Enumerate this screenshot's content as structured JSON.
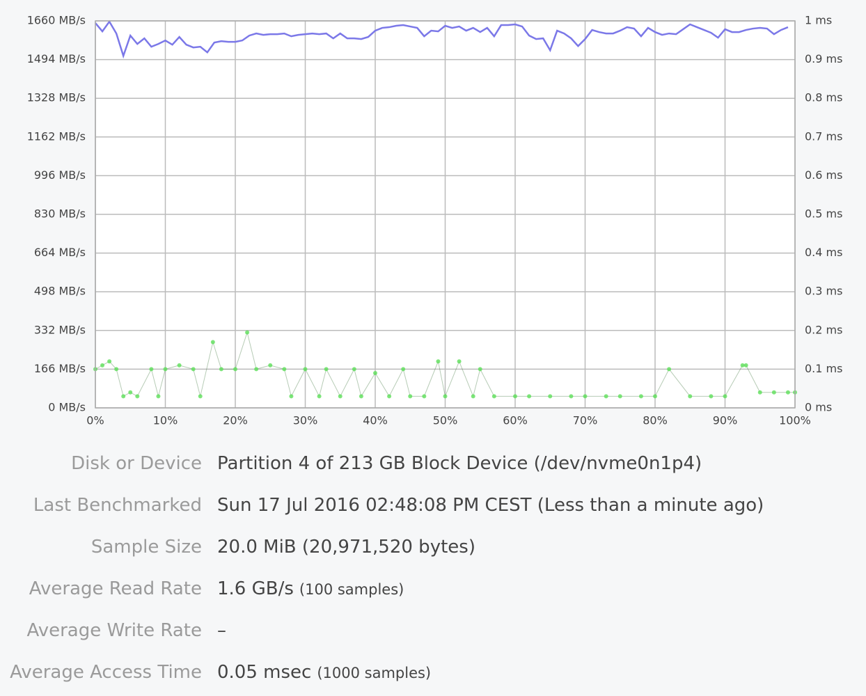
{
  "chart_data": {
    "type": "line",
    "xlim": [
      0,
      100
    ],
    "xticks": [
      {
        "value": 0,
        "label": "0%"
      },
      {
        "value": 10,
        "label": "10%"
      },
      {
        "value": 20,
        "label": "20%"
      },
      {
        "value": 30,
        "label": "30%"
      },
      {
        "value": 40,
        "label": "40%"
      },
      {
        "value": 50,
        "label": "50%"
      },
      {
        "value": 60,
        "label": "60%"
      },
      {
        "value": 70,
        "label": "70%"
      },
      {
        "value": 80,
        "label": "80%"
      },
      {
        "value": 90,
        "label": "90%"
      },
      {
        "value": 100,
        "label": "100%"
      }
    ],
    "ylim": [
      0,
      1660
    ],
    "yticks": [
      {
        "value": 0,
        "label": "0 MB/s"
      },
      {
        "value": 166,
        "label": "166 MB/s"
      },
      {
        "value": 332,
        "label": "332 MB/s"
      },
      {
        "value": 498,
        "label": "498 MB/s"
      },
      {
        "value": 664,
        "label": "664 MB/s"
      },
      {
        "value": 830,
        "label": "830 MB/s"
      },
      {
        "value": 996,
        "label": "996 MB/s"
      },
      {
        "value": 1162,
        "label": "1162 MB/s"
      },
      {
        "value": 1328,
        "label": "1328 MB/s"
      },
      {
        "value": 1494,
        "label": "1494 MB/s"
      },
      {
        "value": 1660,
        "label": "1660 MB/s"
      }
    ],
    "y2lim": [
      0,
      1
    ],
    "y2ticks": [
      {
        "value": 0,
        "label": "0 ms"
      },
      {
        "value": 0.1,
        "label": "0.1 ms"
      },
      {
        "value": 0.2,
        "label": "0.2 ms"
      },
      {
        "value": 0.3,
        "label": "0.3 ms"
      },
      {
        "value": 0.4,
        "label": "0.4 ms"
      },
      {
        "value": 0.5,
        "label": "0.5 ms"
      },
      {
        "value": 0.6,
        "label": "0.6 ms"
      },
      {
        "value": 0.7,
        "label": "0.7 ms"
      },
      {
        "value": 0.8,
        "label": "0.8 ms"
      },
      {
        "value": 0.9,
        "label": "0.9 ms"
      },
      {
        "value": 1,
        "label": "1 ms"
      }
    ],
    "grid": true,
    "series": [
      {
        "type": "line",
        "color": "#7b78e8",
        "x": [
          0,
          1,
          2,
          3,
          4,
          5,
          6,
          7,
          8,
          9,
          10,
          11,
          12,
          13,
          14,
          15,
          16,
          17,
          18,
          19,
          20,
          21,
          22,
          23,
          24,
          25,
          26,
          27,
          28,
          29,
          30,
          31,
          32,
          33,
          34,
          35,
          36,
          37,
          38,
          39,
          40,
          41,
          42,
          43,
          44,
          45,
          46,
          47,
          48,
          49,
          50,
          51,
          52,
          53,
          54,
          55,
          56,
          57,
          58,
          59,
          60,
          61,
          62,
          63,
          64,
          65,
          66,
          67,
          68,
          69,
          70,
          71,
          72,
          73,
          74,
          75,
          76,
          77,
          78,
          79,
          80,
          81,
          82,
          83,
          84,
          85,
          86,
          87,
          88,
          89,
          90,
          91,
          92,
          93,
          94,
          95,
          96,
          97,
          98,
          99
        ],
        "values": [
          1651,
          1615,
          1657,
          1606,
          1510,
          1597,
          1561,
          1585,
          1549,
          1561,
          1576,
          1558,
          1591,
          1558,
          1546,
          1549,
          1525,
          1567,
          1573,
          1570,
          1570,
          1576,
          1597,
          1606,
          1600,
          1603,
          1603,
          1606,
          1594,
          1600,
          1603,
          1606,
          1603,
          1606,
          1585,
          1606,
          1585,
          1585,
          1582,
          1591,
          1618,
          1630,
          1633,
          1639,
          1642,
          1636,
          1630,
          1594,
          1618,
          1615,
          1639,
          1630,
          1636,
          1618,
          1630,
          1612,
          1630,
          1594,
          1642,
          1642,
          1645,
          1636,
          1597,
          1582,
          1585,
          1534,
          1618,
          1606,
          1585,
          1552,
          1582,
          1621,
          1612,
          1606,
          1606,
          1618,
          1633,
          1627,
          1594,
          1630,
          1612,
          1600,
          1606,
          1603,
          1624,
          1645,
          1633,
          1621,
          1609,
          1588,
          1624,
          1612,
          1612,
          1621,
          1627,
          1630,
          1627,
          1603,
          1621,
          1633
        ]
      },
      {
        "type": "scatter",
        "axis": "y2",
        "color": "#5ee05a",
        "x": [
          0,
          1,
          2,
          3,
          4,
          5,
          6,
          8,
          9,
          10,
          12,
          14,
          15,
          16.8,
          18,
          20,
          21.7,
          23,
          25,
          27,
          28,
          30,
          32,
          33,
          35,
          37,
          38,
          40,
          42,
          44,
          45,
          47,
          49,
          50,
          52,
          54,
          55,
          57,
          60,
          62,
          65,
          68,
          70,
          73,
          75,
          78,
          80,
          82,
          85,
          88,
          90,
          92.5,
          93,
          95,
          97,
          99,
          100
        ],
        "values": [
          0.1,
          0.11,
          0.12,
          0.1,
          0.03,
          0.04,
          0.03,
          0.1,
          0.03,
          0.1,
          0.11,
          0.1,
          0.03,
          0.17,
          0.1,
          0.1,
          0.195,
          0.1,
          0.11,
          0.1,
          0.03,
          0.1,
          0.03,
          0.1,
          0.03,
          0.1,
          0.03,
          0.09,
          0.03,
          0.1,
          0.03,
          0.03,
          0.12,
          0.03,
          0.12,
          0.03,
          0.1,
          0.03,
          0.03,
          0.03,
          0.03,
          0.03,
          0.03,
          0.03,
          0.03,
          0.03,
          0.03,
          0.1,
          0.03,
          0.03,
          0.03,
          0.11,
          0.11,
          0.04,
          0.04,
          0.04,
          0.04
        ]
      }
    ]
  },
  "info": {
    "rows": [
      {
        "label": "Disk or Device",
        "value": "Partition 4 of 213 GB Block Device (/dev/nvme0n1p4)"
      },
      {
        "label": "Last Benchmarked",
        "value": "Sun 17 Jul 2016 02:48:08 PM CEST (Less than a minute ago)"
      },
      {
        "label": "Sample Size",
        "value": "20.0 MiB (20,971,520 bytes)"
      },
      {
        "label": "Average Read Rate",
        "value": "1.6 GB/s",
        "note": "(100 samples)"
      },
      {
        "label": "Average Write Rate",
        "value": "–"
      },
      {
        "label": "Average Access Time",
        "value": "0.05 msec",
        "note": "(1000 samples)"
      }
    ]
  }
}
